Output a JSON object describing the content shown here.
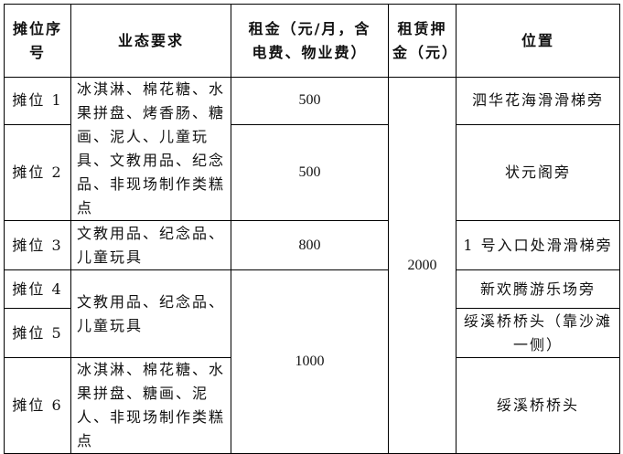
{
  "headers": {
    "stall_no": "摊位序号",
    "business": "业态要求",
    "rent": "租金（元/月，含电费、物业费）",
    "deposit": "租赁押金（元）",
    "location": "位置"
  },
  "rows": [
    {
      "stall": "摊位 1",
      "rent": "500",
      "location": "泗华花海滑滑梯旁"
    },
    {
      "stall": "摊位 2",
      "rent": "500",
      "location": "状元阁旁"
    },
    {
      "stall": "摊位 3",
      "rent": "800",
      "location": "1 号入口处滑滑梯旁"
    },
    {
      "stall": "摊位 4",
      "location": "新欢腾游乐场旁"
    },
    {
      "stall": "摊位 5",
      "location": "绥溪桥桥头（靠沙滩一侧）"
    },
    {
      "stall": "摊位 6",
      "location": "绥溪桥桥头"
    }
  ],
  "business_groups": [
    "冰淇淋、棉花糖、水果拼盘、烤香肠、糖画、泥人、儿童玩具、文教用品、纪念品、非现场制作类糕点",
    "文教用品、纪念品、儿童玩具",
    "文教用品、纪念品、儿童玩具",
    "冰淇淋、棉花糖、水果拼盘、糖画、泥人、非现场制作类糕点"
  ],
  "rent_merged_4_6": "1000",
  "deposit_all": "2000"
}
